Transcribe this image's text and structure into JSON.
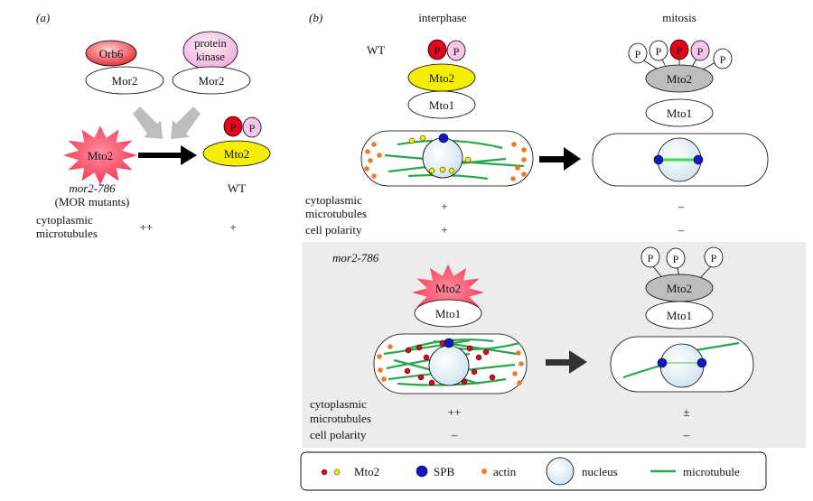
{
  "panel_a": {
    "label": "(a)",
    "orb6": "Orb6",
    "protein_kinase_line1": "protein",
    "protein_kinase_line2": "kinase",
    "mor2_left": "Mor2",
    "mor2_right": "Mor2",
    "mto2_mutant": "Mto2",
    "mto2_wt": "Mto2",
    "p1": "P",
    "p2": "P",
    "mutant_label": "mor2-786",
    "mutant_sublabel": "(MOR mutants)",
    "wt_label": "WT",
    "row_label_line1": "cytoplasmic",
    "row_label_line2": "microtubules",
    "mutant_value": "++",
    "wt_value": "+"
  },
  "panel_b": {
    "label": "(b)",
    "col_interphase": "interphase",
    "col_mitosis": "mitosis",
    "wt": {
      "label": "WT",
      "inter_p1": "P",
      "inter_p2": "P",
      "inter_mto2": "Mto2",
      "inter_mto1": "Mto1",
      "mit_p": [
        "P",
        "P",
        "P",
        "P",
        "P"
      ],
      "mit_mto2": "Mto2",
      "mit_mto1": "Mto1",
      "row1_line1": "cytoplasmic",
      "row1_line2": "microtubules",
      "row2": "cell polarity",
      "inter_mt": "+",
      "inter_pol": "+",
      "mit_mt": "–",
      "mit_pol": "–"
    },
    "mutant": {
      "label": "mor2-786",
      "inter_mto2": "Mto2",
      "inter_mto1": "Mto1",
      "mit_p": [
        "P",
        "P",
        "P"
      ],
      "mit_mto2": "Mto2",
      "mit_mto1": "Mto1",
      "row1_line1": "cytoplasmic",
      "row1_line2": "microtubules",
      "row2": "cell polarity",
      "inter_mt": "++",
      "inter_pol": "–",
      "mit_mt": "±",
      "mit_pol": "–"
    },
    "legend": {
      "mto2": "Mto2",
      "spb": "SPB",
      "actin": "actin",
      "nucleus": "nucleus",
      "microtubule": "microtubule"
    }
  },
  "colors": {
    "red": "#e8001c",
    "yellow": "#f5ee00",
    "pink": "#f6c6e6",
    "star": "#f5304e",
    "gray": "#bdbdbd",
    "shade": "#ececec",
    "microtubule": "#2aa54c",
    "spb": "#1018c8",
    "actin": "#f07a22",
    "nucleus": "#dcebf5"
  }
}
